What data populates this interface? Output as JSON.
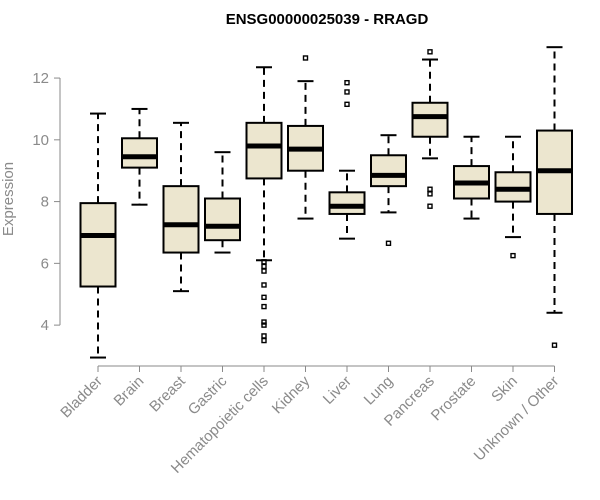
{
  "chart_data": {
    "type": "box",
    "title": "ENSG00000025039 - RRAGD",
    "xlabel": "",
    "ylabel": "Expression",
    "ylim": [
      3.0,
      13.2
    ],
    "yticks": [
      4,
      6,
      8,
      10,
      12
    ],
    "grid": false,
    "box_color": "#ece6cf",
    "categories": [
      "Bladder",
      "Brain",
      "Breast",
      "Gastric",
      "Hematopoietic cells",
      "Kidney",
      "Liver",
      "Lung",
      "Pancreas",
      "Prostate",
      "Skin",
      "Unknown / Other"
    ],
    "boxes": [
      {
        "whisker_low": 2.95,
        "q1": 5.25,
        "median": 6.9,
        "q3": 7.95,
        "whisker_high": 10.85,
        "outliers": []
      },
      {
        "whisker_low": 7.9,
        "q1": 9.1,
        "median": 9.45,
        "q3": 10.05,
        "whisker_high": 11.0,
        "outliers": []
      },
      {
        "whisker_low": 5.1,
        "q1": 6.35,
        "median": 7.25,
        "q3": 8.5,
        "whisker_high": 10.55,
        "outliers": []
      },
      {
        "whisker_low": 6.35,
        "q1": 6.75,
        "median": 7.2,
        "q3": 8.1,
        "whisker_high": 9.6,
        "outliers": []
      },
      {
        "whisker_low": 6.1,
        "q1": 8.75,
        "median": 9.8,
        "q3": 10.55,
        "whisker_high": 12.35,
        "outliers": [
          5.75,
          5.9,
          6.05,
          5.3,
          4.9,
          4.6,
          4.1,
          4.0,
          3.65,
          3.5
        ]
      },
      {
        "whisker_low": 7.45,
        "q1": 9.0,
        "median": 9.7,
        "q3": 10.45,
        "whisker_high": 11.9,
        "outliers": [
          12.65
        ]
      },
      {
        "whisker_low": 6.8,
        "q1": 7.6,
        "median": 7.85,
        "q3": 8.3,
        "whisker_high": 9.0,
        "outliers": [
          11.85,
          11.55,
          11.15
        ]
      },
      {
        "whisker_low": 7.65,
        "q1": 8.5,
        "median": 8.85,
        "q3": 9.5,
        "whisker_high": 10.15,
        "outliers": [
          6.65
        ]
      },
      {
        "whisker_low": 9.4,
        "q1": 10.1,
        "median": 10.75,
        "q3": 11.2,
        "whisker_high": 12.6,
        "outliers": [
          12.85,
          8.4,
          8.25,
          7.85
        ]
      },
      {
        "whisker_low": 7.45,
        "q1": 8.1,
        "median": 8.6,
        "q3": 9.15,
        "whisker_high": 10.1,
        "outliers": []
      },
      {
        "whisker_low": 6.85,
        "q1": 8.0,
        "median": 8.4,
        "q3": 8.95,
        "whisker_high": 10.1,
        "outliers": [
          6.25
        ]
      },
      {
        "whisker_low": 4.4,
        "q1": 7.6,
        "median": 9.0,
        "q3": 10.3,
        "whisker_high": 13.0,
        "outliers": [
          3.35
        ]
      }
    ]
  }
}
